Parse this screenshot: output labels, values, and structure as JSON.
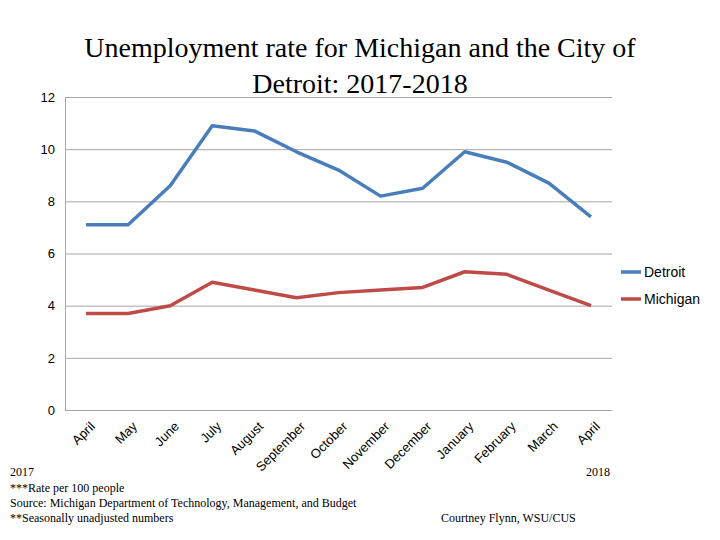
{
  "chart_data": {
    "type": "line",
    "title": "Unemployment rate for Michigan and the City of Detroit: 2017-2018",
    "categories": [
      "April",
      "May",
      "June",
      "July",
      "August",
      "September",
      "October",
      "November",
      "December",
      "January",
      "February",
      "March",
      "April"
    ],
    "series": [
      {
        "name": "Detroit",
        "color": "#4a7ebb",
        "values": [
          7.1,
          7.1,
          8.6,
          10.9,
          10.7,
          9.9,
          9.2,
          8.2,
          8.5,
          9.9,
          9.5,
          8.7,
          7.4
        ]
      },
      {
        "name": "Michigan",
        "color": "#be4b48",
        "values": [
          3.7,
          3.7,
          4.0,
          4.9,
          4.6,
          4.3,
          4.5,
          4.6,
          4.7,
          5.3,
          5.2,
          4.6,
          4.0
        ]
      }
    ],
    "ylim": [
      0,
      12
    ],
    "yticks": [
      0,
      2,
      4,
      6,
      8,
      10,
      12
    ],
    "grid": true,
    "legend": "right",
    "annotations": [
      "2017",
      "2018",
      "***Rate per 100 people",
      "Source: Michigan Department of Technology, Management, and Budget",
      "**Seasonally unadjusted numbers",
      "Courtney Flynn, WSU/CUS"
    ]
  }
}
